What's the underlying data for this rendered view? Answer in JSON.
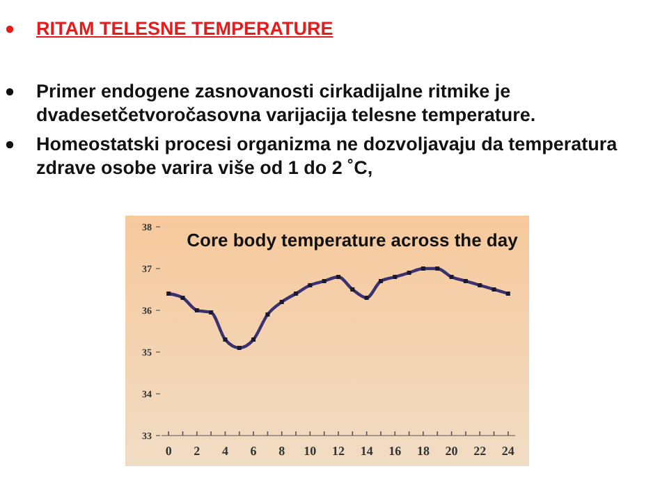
{
  "chart_data": {
    "type": "line",
    "title": "Core body temperature across the day",
    "annotations": [
      "RITAM TELESNE TEMPERATURE",
      "Primer endogene zasnovanosti cirkadijalne ritmike je dvadesetčetvoročasovna varijacija telesne temperature.",
      "Homeostatski procesi organizma ne dozvoljavaju da temperatura zdrave osobe varira više od 1 do 2 ˚C,"
    ],
    "x": [
      0,
      1,
      2,
      3,
      4,
      5,
      6,
      7,
      8,
      9,
      10,
      11,
      12,
      13,
      14,
      15,
      16,
      17,
      18,
      19,
      20,
      21,
      22,
      23,
      24
    ],
    "series": [
      {
        "color": "#3b3170",
        "values": [
          36.4,
          36.3,
          36.0,
          35.95,
          35.3,
          35.1,
          35.3,
          35.9,
          36.2,
          36.4,
          36.6,
          36.7,
          36.8,
          36.5,
          36.3,
          36.7,
          36.8,
          36.9,
          37.0,
          37.0,
          36.8,
          36.7,
          36.6,
          36.5,
          36.4
        ]
      }
    ],
    "xlim": [
      -0.5,
      24.5
    ],
    "xticks": [
      0,
      {
        "value": 1,
        "label": null
      },
      2,
      {
        "value": 3,
        "label": null
      },
      4,
      {
        "value": 5,
        "label": null
      },
      6,
      {
        "value": 7,
        "label": null
      },
      8,
      {
        "value": 9,
        "label": null
      },
      10,
      {
        "value": 11,
        "label": null
      },
      12,
      {
        "value": 13,
        "label": null
      },
      14,
      {
        "value": 15,
        "label": null
      },
      16,
      {
        "value": 17,
        "label": null
      },
      18,
      {
        "value": 19,
        "label": null
      },
      20,
      {
        "value": 21,
        "label": null
      },
      22,
      {
        "value": 23,
        "label": null
      },
      24
    ],
    "ylim": [
      33,
      38
    ],
    "yticks": [
      33,
      34,
      35,
      36,
      37,
      38
    ],
    "grid": false,
    "marker": "square",
    "line_style": "solid"
  }
}
